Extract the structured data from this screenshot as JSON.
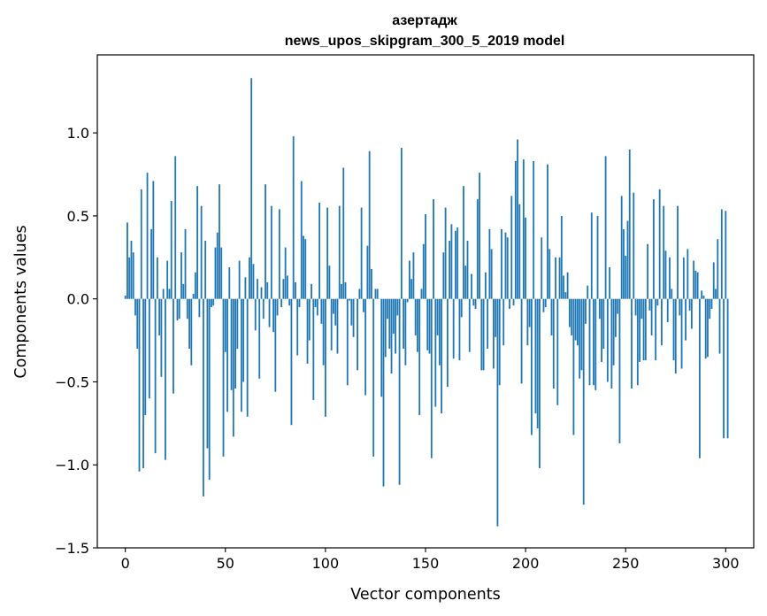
{
  "chart_data": {
    "type": "bar",
    "title_line1": "азертадж",
    "title_line2": "news_upos_skipgram_300_5_2019 model",
    "xlabel": "Vector components",
    "ylabel": "Components values",
    "xlim": [
      -14,
      314
    ],
    "ylim": [
      -1.5,
      1.47
    ],
    "xticks": [
      0,
      50,
      100,
      150,
      200,
      250,
      300
    ],
    "yticks": [
      1.0,
      0.5,
      0.0,
      -0.5,
      -1.0,
      -1.5
    ],
    "ytick_labels": [
      "1.0",
      "0.5",
      "0.0",
      "−0.5",
      "−1.0",
      "−1.5"
    ],
    "bar_color": "#1f77b4",
    "values": [
      0.02,
      0.46,
      0.25,
      0.35,
      0.28,
      -0.1,
      -0.3,
      -1.04,
      0.66,
      -1.02,
      -0.7,
      0.76,
      -0.6,
      0.42,
      0.71,
      -0.93,
      0.25,
      -0.22,
      -0.47,
      0.06,
      -0.97,
      0.23,
      0.06,
      0.59,
      -0.57,
      0.86,
      -0.13,
      -0.12,
      0.28,
      0.09,
      0.42,
      -0.12,
      -0.3,
      -0.4,
      0.03,
      0.16,
      0.68,
      -0.11,
      0.56,
      -1.19,
      0.35,
      -0.9,
      -1.09,
      -0.05,
      -0.04,
      0.31,
      0.4,
      0.69,
      0.31,
      -0.95,
      -0.32,
      -0.68,
      0.19,
      -0.55,
      -0.83,
      -0.54,
      -0.3,
      0.23,
      -0.68,
      -0.5,
      0.13,
      -0.71,
      0.25,
      1.33,
      0.21,
      -0.19,
      0.12,
      -0.48,
      0.07,
      -0.12,
      0.69,
      0.1,
      -0.17,
      0.56,
      -0.2,
      -0.56,
      -0.1,
      0.54,
      -0.05,
      0.12,
      0.31,
      0.14,
      -0.04,
      -0.76,
      0.98,
      0.1,
      -0.34,
      -0.05,
      0.71,
      0.38,
      0.36,
      -0.39,
      -0.25,
      0.09,
      -0.61,
      -0.05,
      -0.1,
      0.58,
      -0.15,
      -0.4,
      -0.71,
      0.55,
      0.2,
      -0.31,
      -0.09,
      -0.16,
      -0.33,
      0.56,
      0.09,
      0.79,
      0.1,
      -0.52,
      -0.01,
      -0.16,
      -0.23,
      0.0,
      -0.43,
      0.06,
      0.55,
      -0.08,
      -0.58,
      0.32,
      0.89,
      0.18,
      -0.95,
      0.06,
      0.06,
      0.0,
      -0.59,
      -1.13,
      -0.35,
      -0.12,
      -0.3,
      -0.45,
      -0.21,
      -0.33,
      -0.1,
      -1.12,
      0.91,
      -0.3,
      -0.4,
      -0.02,
      0.23,
      0.12,
      0.28,
      -0.22,
      -0.32,
      -0.7,
      0.06,
      0.33,
      0.51,
      -0.31,
      -0.33,
      -0.96,
      0.6,
      -0.65,
      -0.22,
      -0.4,
      -0.69,
      0.28,
      0.55,
      -0.53,
      0.35,
      0.45,
      -0.36,
      0.41,
      0.43,
      -0.37,
      -0.11,
      0.68,
      0.2,
      0.35,
      -0.32,
      0.15,
      -0.04,
      -0.06,
      0.6,
      0.76,
      -0.43,
      -0.43,
      0.16,
      -0.3,
      0.42,
      0.3,
      -0.42,
      -0.23,
      -1.37,
      -0.52,
      0.42,
      -0.28,
      0.4,
      0.37,
      -0.06,
      0.62,
      -0.04,
      0.83,
      0.96,
      0.57,
      -0.51,
      0.84,
      0.49,
      -0.28,
      -0.17,
      -0.82,
      0.83,
      -0.69,
      -0.78,
      -1.02,
      0.37,
      -0.08,
      -0.05,
      0.81,
      0.3,
      -0.22,
      -0.54,
      0.25,
      -0.64,
      0.25,
      0.5,
      0.14,
      0.04,
      0.16,
      -0.17,
      -0.22,
      -0.82,
      -0.25,
      -0.28,
      -0.48,
      -0.43,
      -1.24,
      -0.15,
      0.08,
      -0.52,
      0.52,
      -0.52,
      -0.55,
      0.5,
      -0.12,
      -0.38,
      -0.3,
      0.86,
      -0.5,
      0.19,
      -0.54,
      -0.4,
      -0.23,
      -0.09,
      -0.87,
      0.62,
      0.42,
      0.26,
      0.47,
      0.9,
      -0.54,
      0.64,
      -0.1,
      -0.52,
      -0.38,
      -0.12,
      -0.37,
      -0.37,
      0.33,
      -0.07,
      -0.22,
      0.6,
      -0.37,
      -0.04,
      0.66,
      -0.28,
      0.56,
      0.29,
      -0.14,
      0.25,
      0.06,
      -0.37,
      -0.45,
      0.56,
      -0.1,
      -0.42,
      0.25,
      -0.25,
      0.3,
      -0.07,
      -0.18,
      0.23,
      0.17,
      0.16,
      -0.96,
      0.05,
      0.02,
      -0.36,
      -0.35,
      -0.12,
      -0.06,
      0.22,
      0.06,
      0.36,
      -0.33,
      0.54,
      -0.84,
      0.53,
      -0.84
    ]
  }
}
